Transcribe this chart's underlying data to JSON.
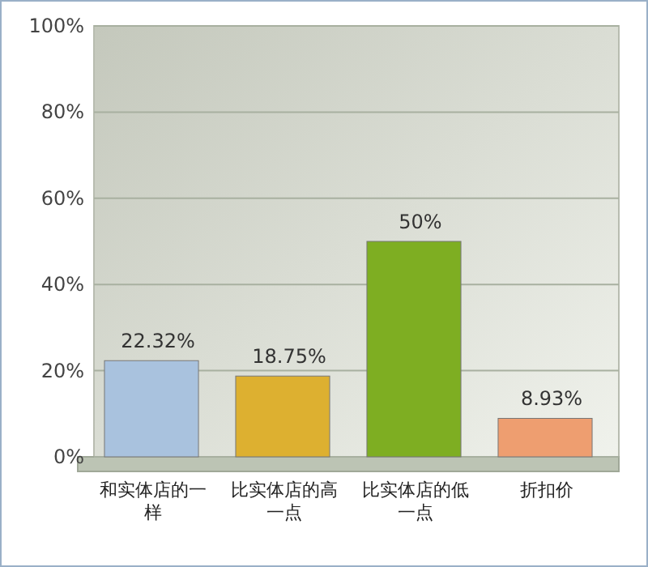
{
  "chart_data": {
    "type": "bar",
    "categories": [
      "和实体店的一样",
      "比实体店的高一点",
      "比实体店的低一点",
      "折扣价"
    ],
    "values": [
      22.32,
      18.75,
      50,
      8.93
    ],
    "colors": [
      "#a9c2de",
      "#ddb030",
      "#7eae22",
      "#ee9e70"
    ],
    "value_labels": [
      "22.32%",
      "18.75%",
      "50%",
      "8.93%"
    ],
    "ylim": [
      0,
      100
    ],
    "yticks": [
      {
        "value": 0,
        "label": "0%"
      },
      {
        "value": 20,
        "label": "20%"
      },
      {
        "value": 40,
        "label": "40%"
      },
      {
        "value": 60,
        "label": "60%"
      },
      {
        "value": 80,
        "label": "80%"
      },
      {
        "value": 100,
        "label": "100%"
      }
    ],
    "grid": "y"
  }
}
